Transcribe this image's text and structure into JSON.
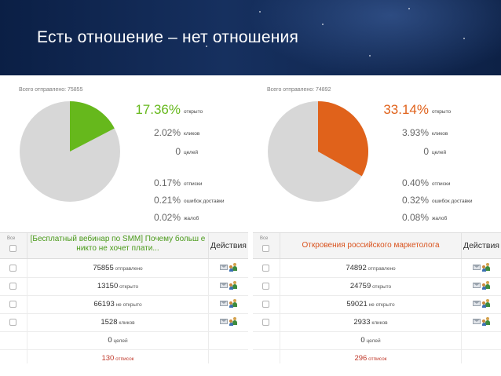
{
  "slide": {
    "title": "Есть отношение – нет отношения"
  },
  "colors": {
    "header_bg": "#0f2550",
    "pie_grey": "#d7d7d7",
    "left_accent": "#66b81c",
    "right_accent": "#e0621b",
    "red_text": "#c0392b"
  },
  "left_stats": {
    "sent_caption": "Всего отправлено: 75855",
    "open_fraction": 0.1736,
    "accent": "#66b81c",
    "metrics": [
      {
        "value": "17.36%",
        "label": "открыто"
      },
      {
        "value": "2.02%",
        "label": "кликов"
      },
      {
        "value": "0",
        "label": "целей"
      },
      {
        "value": "0.17%",
        "label": "отписки"
      },
      {
        "value": "0.21%",
        "label": "ошибок доставки"
      },
      {
        "value": "0.02%",
        "label": "жалоб"
      }
    ]
  },
  "right_stats": {
    "sent_caption": "Всего отправлено: 74892",
    "open_fraction": 0.3314,
    "accent": "#e0621b",
    "metrics": [
      {
        "value": "33.14%",
        "label": "открыто"
      },
      {
        "value": "3.93%",
        "label": "кликов"
      },
      {
        "value": "0",
        "label": "целей"
      },
      {
        "value": "0.40%",
        "label": "отписки"
      },
      {
        "value": "0.32%",
        "label": "ошибок доставки"
      },
      {
        "value": "0.08%",
        "label": "жалоб"
      }
    ]
  },
  "left_table": {
    "select_all": "Все",
    "campaign_title": "[Бесплатный вебинар по SMM] Почему больш е никто не хочет плати...",
    "actions_header": "Действия",
    "rows": [
      {
        "value": "75855",
        "label": "отправлено"
      },
      {
        "value": "13150",
        "label": "открыто"
      },
      {
        "value": "66193",
        "label": "не открыто"
      },
      {
        "value": "1528",
        "label": "кликов"
      },
      {
        "value": "0",
        "label": "целей"
      },
      {
        "value": "130",
        "label": "отписок"
      }
    ]
  },
  "right_table": {
    "select_all": "Все",
    "campaign_title": "Откровения российского маркетолога",
    "actions_header": "Действия",
    "rows": [
      {
        "value": "74892",
        "label": "отправлено"
      },
      {
        "value": "24759",
        "label": "открыто"
      },
      {
        "value": "59021",
        "label": "не открыто"
      },
      {
        "value": "2933",
        "label": "кликов"
      },
      {
        "value": "0",
        "label": "целей"
      },
      {
        "value": "296",
        "label": "отписок"
      }
    ]
  }
}
